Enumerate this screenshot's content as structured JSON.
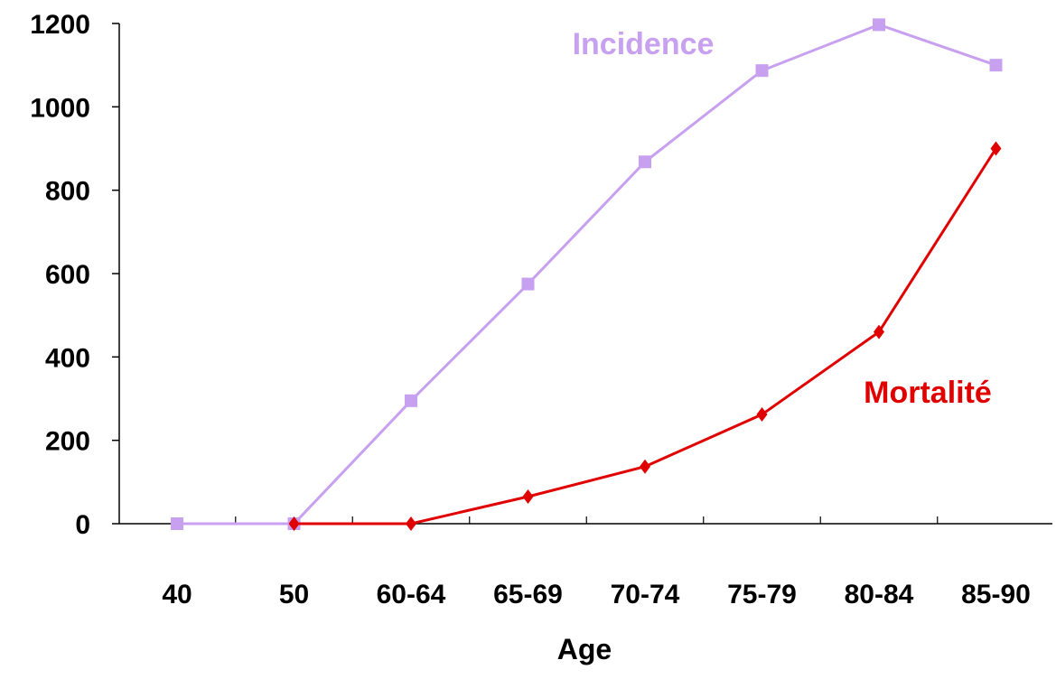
{
  "chart_data": {
    "type": "line",
    "categories": [
      "40",
      "50",
      "60-64",
      "65-69",
      "70-74",
      "75-79",
      "80-84",
      "85-90"
    ],
    "xlabel": "Age",
    "ylabel": "",
    "ylim": [
      0,
      1200
    ],
    "yticks": [
      "0",
      "200",
      "400",
      "600",
      "800",
      "1000",
      "1200"
    ],
    "grid": false,
    "series": [
      {
        "name": "Incidence",
        "color": "#c8a0f0",
        "marker": "square",
        "values": [
          0,
          0,
          295,
          575,
          868,
          1087,
          1197,
          1100
        ]
      },
      {
        "name": "Mortalité",
        "color": "#e00000",
        "marker": "diamond",
        "values": [
          null,
          0,
          0,
          65,
          137,
          262,
          460,
          900
        ]
      }
    ]
  }
}
